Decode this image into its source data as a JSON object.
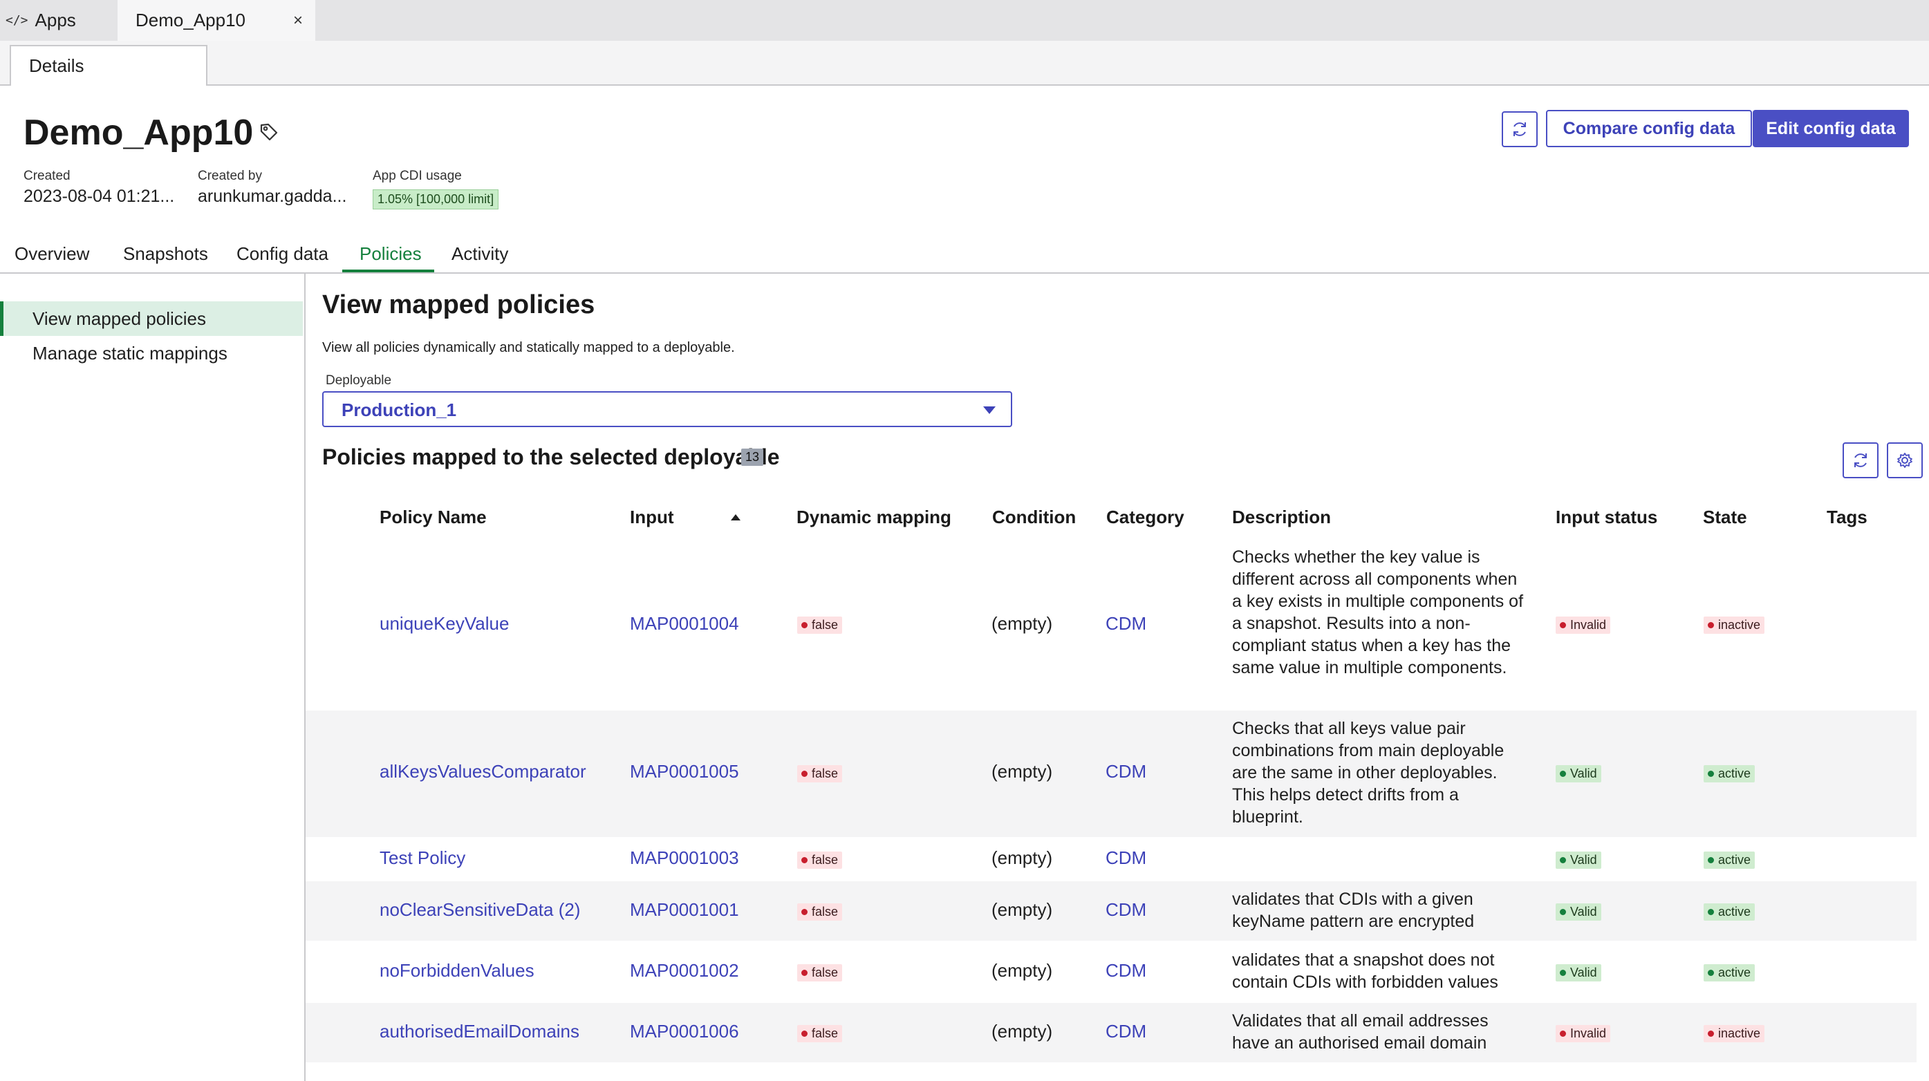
{
  "top_tabs": {
    "apps_label": "Apps",
    "app_tab_label": "Demo_App10"
  },
  "sub_tab": {
    "details_label": "Details"
  },
  "header": {
    "title": "Demo_App10",
    "created_label": "Created",
    "created_value": "2023-08-04 01:21...",
    "created_by_label": "Created by",
    "created_by_value": "arunkumar.gadda...",
    "cdi_usage_label": "App CDI usage",
    "cdi_usage_value": "1.05% [100,000 limit]",
    "compare_label": "Compare config data",
    "edit_label": "Edit config data"
  },
  "main_tabs": [
    "Overview",
    "Snapshots",
    "Config data",
    "Policies",
    "Activity"
  ],
  "sidebar": {
    "items": [
      "View mapped policies",
      "Manage static mappings"
    ]
  },
  "content": {
    "title": "View mapped policies",
    "description": "View all policies dynamically and statically mapped to a deployable.",
    "deployable_label": "Deployable",
    "deployable_value": "Production_1",
    "policies_title": "Policies mapped to the selected deployable",
    "policies_count": "13"
  },
  "table": {
    "headers": [
      "Policy Name",
      "Input",
      "Dynamic mapping",
      "Condition",
      "Category",
      "Description",
      "Input status",
      "State",
      "Tags"
    ],
    "rows": [
      {
        "name": "uniqueKeyValue",
        "input": "MAP0001004",
        "dynamic": "false",
        "condition": "(empty)",
        "category": "CDM",
        "description": "Checks whether the key value is different across all components when a key exists in multiple components of a snapshot. Results into a non-compliant status when a key has the same value in multiple components.",
        "input_status": "Invalid",
        "state": "inactive"
      },
      {
        "name": "allKeysValuesComparator",
        "input": "MAP0001005",
        "dynamic": "false",
        "condition": "(empty)",
        "category": "CDM",
        "description": "Checks that all keys value pair combinations from main deployable are the same in other deployables. This helps detect drifts from a blueprint.",
        "input_status": "Valid",
        "state": "active"
      },
      {
        "name": "Test Policy",
        "input": "MAP0001003",
        "dynamic": "false",
        "condition": "(empty)",
        "category": "CDM",
        "description": "",
        "input_status": "Valid",
        "state": "active"
      },
      {
        "name": "noClearSensitiveData (2)",
        "input": "MAP0001001",
        "dynamic": "false",
        "condition": "(empty)",
        "category": "CDM",
        "description": "validates that CDIs with a given keyName pattern are encrypted",
        "input_status": "Valid",
        "state": "active"
      },
      {
        "name": "noForbiddenValues",
        "input": "MAP0001002",
        "dynamic": "false",
        "condition": "(empty)",
        "category": "CDM",
        "description": "validates that a snapshot does not contain CDIs with forbidden values",
        "input_status": "Valid",
        "state": "active"
      },
      {
        "name": "authorisedEmailDomains",
        "input": "MAP0001006",
        "dynamic": "false",
        "condition": "(empty)",
        "category": "CDM",
        "description": "Validates that all email addresses have an authorised email domain",
        "input_status": "Invalid",
        "state": "inactive"
      }
    ]
  },
  "icons": {
    "apps": "code-icon",
    "close": "close-icon",
    "tag": "tag-icon",
    "refresh": "refresh-icon",
    "settings": "gear-icon",
    "dropdown": "caret-down-icon",
    "sort": "sort-ascending-icon"
  },
  "colors": {
    "accent": "#4a4fc4",
    "active_tab": "#15803d",
    "link": "#3d42b8",
    "invalid_bg": "#fde1e3",
    "valid_bg": "#cfeccf"
  }
}
